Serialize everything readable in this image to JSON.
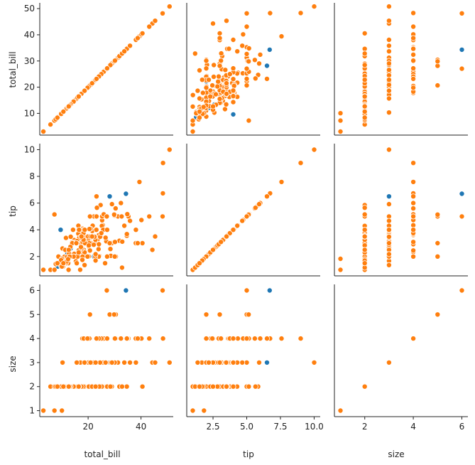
{
  "figure": {
    "type": "pairplot",
    "variables": [
      "total_bill",
      "tip",
      "size"
    ]
  },
  "axes": {
    "total_bill": {
      "label": "total_bill",
      "range": [
        1.7,
        52.2
      ],
      "ticks_y": [
        10,
        20,
        30,
        40,
        50
      ],
      "ticks_x": [
        20,
        40
      ],
      "tick_labels_x": [
        "20",
        "40"
      ]
    },
    "tip": {
      "label": "tip",
      "range": [
        0.55,
        10.45
      ],
      "ticks_y": [
        2,
        4,
        6,
        8,
        10
      ],
      "ticks_x": [
        2.5,
        5.0,
        7.5,
        10.0
      ],
      "tick_labels_x": [
        "2.5",
        "5.0",
        "7.5",
        "10.0"
      ]
    },
    "size": {
      "label": "size",
      "range": [
        0.75,
        6.25
      ],
      "ticks_y": [
        1,
        2,
        3,
        4,
        5,
        6
      ],
      "ticks_x": [
        2,
        4,
        6
      ],
      "tick_labels_x": [
        "2",
        "4",
        "6"
      ]
    }
  },
  "chart_data": {
    "type": "scatter",
    "series": [
      {
        "color": "#1f77b4",
        "points": [
          [
            3.07,
            1.0,
            1
          ],
          [
            7.25,
            1.0,
            1
          ],
          [
            8.51,
            1.25,
            2
          ],
          [
            9.6,
            4.0,
            2
          ],
          [
            10.07,
            1.83,
            1
          ],
          [
            10.29,
            2.6,
            2
          ],
          [
            11.17,
            1.5,
            2
          ],
          [
            12.16,
            2.2,
            2
          ],
          [
            13.0,
            2.0,
            2
          ],
          [
            13.28,
            2.72,
            2
          ],
          [
            14.0,
            3.0,
            2
          ],
          [
            14.52,
            2.0,
            2
          ],
          [
            15.01,
            2.09,
            2
          ],
          [
            15.69,
            3.0,
            3
          ],
          [
            16.47,
            3.23,
            3
          ],
          [
            17.31,
            3.5,
            2
          ],
          [
            18.15,
            3.5,
            3
          ],
          [
            18.78,
            3.0,
            2
          ],
          [
            19.44,
            3.0,
            2
          ],
          [
            20.29,
            2.75,
            2
          ],
          [
            20.92,
            4.08,
            2
          ],
          [
            22.23,
            2.0,
            2
          ],
          [
            22.76,
            3.0,
            2
          ],
          [
            24.59,
            3.61,
            4
          ],
          [
            26.59,
            3.41,
            3
          ],
          [
            27.18,
            2.0,
            2
          ],
          [
            28.17,
            6.5,
            3
          ],
          [
            29.03,
            5.92,
            3
          ],
          [
            32.68,
            5.0,
            2
          ],
          [
            34.3,
            6.7,
            6
          ],
          [
            40.55,
            3.0,
            2
          ],
          [
            43.11,
            5.0,
            4
          ],
          [
            27.05,
            5.0,
            6
          ],
          [
            48.17,
            5.0,
            6
          ],
          [
            28.15,
            3.0,
            5
          ],
          [
            16.32,
            4.3,
            2
          ],
          [
            21.01,
            3.5,
            3
          ],
          [
            12.74,
            2.01,
            2
          ],
          [
            25.0,
            3.75,
            4
          ],
          [
            13.39,
            2.61,
            2
          ]
        ]
      },
      {
        "color": "#ff7f0e",
        "points": [
          [
            16.99,
            1.01,
            2
          ],
          [
            10.34,
            1.66,
            3
          ],
          [
            21.01,
            3.5,
            3
          ],
          [
            23.68,
            3.31,
            2
          ],
          [
            24.59,
            3.61,
            4
          ],
          [
            25.29,
            4.71,
            4
          ],
          [
            8.77,
            2.0,
            2
          ],
          [
            26.88,
            3.12,
            4
          ],
          [
            15.04,
            1.96,
            2
          ],
          [
            14.78,
            3.23,
            2
          ],
          [
            35.26,
            5.0,
            4
          ],
          [
            15.42,
            1.57,
            2
          ],
          [
            18.43,
            3.0,
            4
          ],
          [
            14.83,
            3.02,
            2
          ],
          [
            21.58,
            3.92,
            2
          ],
          [
            10.33,
            1.67,
            3
          ],
          [
            16.29,
            3.71,
            3
          ],
          [
            20.65,
            3.35,
            3
          ],
          [
            17.92,
            4.08,
            2
          ],
          [
            20.29,
            2.75,
            2
          ],
          [
            15.77,
            2.23,
            2
          ],
          [
            39.42,
            7.58,
            4
          ],
          [
            19.82,
            3.18,
            2
          ],
          [
            17.81,
            2.34,
            4
          ],
          [
            13.37,
            2.0,
            2
          ],
          [
            12.69,
            2.0,
            2
          ],
          [
            21.7,
            4.3,
            2
          ],
          [
            19.65,
            3.0,
            2
          ],
          [
            9.55,
            1.45,
            2
          ],
          [
            18.35,
            2.5,
            4
          ],
          [
            15.06,
            3.0,
            2
          ],
          [
            20.69,
            2.45,
            4
          ],
          [
            17.78,
            3.27,
            2
          ],
          [
            24.06,
            3.6,
            3
          ],
          [
            16.31,
            2.0,
            3
          ],
          [
            16.93,
            3.07,
            3
          ],
          [
            18.69,
            2.31,
            3
          ],
          [
            31.27,
            5.0,
            3
          ],
          [
            16.04,
            2.24,
            3
          ],
          [
            17.46,
            2.54,
            2
          ],
          [
            13.94,
            3.06,
            2
          ],
          [
            9.68,
            1.32,
            2
          ],
          [
            30.4,
            5.6,
            4
          ],
          [
            18.29,
            3.0,
            2
          ],
          [
            22.23,
            5.0,
            2
          ],
          [
            32.4,
            6.0,
            4
          ],
          [
            28.55,
            2.05,
            3
          ],
          [
            18.04,
            3.0,
            2
          ],
          [
            12.54,
            2.5,
            2
          ],
          [
            10.29,
            2.6,
            2
          ],
          [
            34.81,
            5.2,
            4
          ],
          [
            9.94,
            1.56,
            2
          ],
          [
            25.56,
            4.34,
            4
          ],
          [
            19.49,
            3.51,
            2
          ],
          [
            38.01,
            3.0,
            4
          ],
          [
            26.41,
            1.5,
            2
          ],
          [
            11.24,
            1.76,
            2
          ],
          [
            48.27,
            6.73,
            4
          ],
          [
            20.29,
            3.21,
            2
          ],
          [
            13.81,
            2.0,
            2
          ],
          [
            11.02,
            1.98,
            2
          ],
          [
            18.29,
            3.76,
            4
          ],
          [
            17.59,
            2.64,
            3
          ],
          [
            20.08,
            3.15,
            3
          ],
          [
            16.45,
            2.47,
            2
          ],
          [
            3.07,
            1.0,
            1
          ],
          [
            20.23,
            2.01,
            2
          ],
          [
            15.01,
            2.09,
            2
          ],
          [
            12.02,
            1.97,
            2
          ],
          [
            17.07,
            3.0,
            3
          ],
          [
            26.86,
            3.14,
            2
          ],
          [
            25.28,
            5.0,
            2
          ],
          [
            14.73,
            2.2,
            2
          ],
          [
            10.51,
            1.25,
            2
          ],
          [
            17.92,
            3.08,
            2
          ],
          [
            27.2,
            4.0,
            4
          ],
          [
            22.76,
            3.0,
            2
          ],
          [
            17.29,
            2.71,
            2
          ],
          [
            19.44,
            3.0,
            2
          ],
          [
            16.66,
            3.4,
            2
          ],
          [
            10.07,
            1.83,
            1
          ],
          [
            32.68,
            5.0,
            2
          ],
          [
            15.98,
            2.03,
            2
          ],
          [
            34.83,
            5.17,
            4
          ],
          [
            13.03,
            2.0,
            2
          ],
          [
            18.28,
            4.0,
            2
          ],
          [
            24.71,
            5.85,
            2
          ],
          [
            21.16,
            3.0,
            2
          ],
          [
            28.97,
            3.0,
            2
          ],
          [
            22.49,
            3.5,
            2
          ],
          [
            5.75,
            1.0,
            2
          ],
          [
            16.32,
            4.3,
            2
          ],
          [
            22.75,
            3.25,
            2
          ],
          [
            40.17,
            4.73,
            4
          ],
          [
            27.28,
            4.0,
            2
          ],
          [
            12.03,
            1.5,
            2
          ],
          [
            21.01,
            3.0,
            2
          ],
          [
            12.46,
            1.5,
            2
          ],
          [
            11.35,
            2.5,
            2
          ],
          [
            15.38,
            3.0,
            2
          ],
          [
            44.3,
            2.5,
            3
          ],
          [
            22.42,
            3.48,
            2
          ],
          [
            20.92,
            4.08,
            2
          ],
          [
            15.36,
            1.64,
            2
          ],
          [
            20.49,
            4.06,
            2
          ],
          [
            25.21,
            4.29,
            2
          ],
          [
            18.24,
            3.76,
            2
          ],
          [
            14.31,
            4.0,
            2
          ],
          [
            14.0,
            3.0,
            2
          ],
          [
            7.25,
            1.0,
            1
          ],
          [
            38.07,
            4.0,
            3
          ],
          [
            23.95,
            2.55,
            2
          ],
          [
            25.71,
            4.0,
            3
          ],
          [
            17.31,
            3.5,
            2
          ],
          [
            29.93,
            5.07,
            4
          ],
          [
            50.81,
            10.0,
            3
          ],
          [
            15.81,
            3.16,
            2
          ],
          [
            7.25,
            5.15,
            2
          ],
          [
            31.85,
            3.18,
            2
          ],
          [
            16.82,
            4.0,
            2
          ],
          [
            32.9,
            3.11,
            2
          ],
          [
            17.89,
            2.0,
            2
          ],
          [
            14.48,
            2.0,
            2
          ],
          [
            34.63,
            3.55,
            2
          ],
          [
            34.65,
            3.68,
            4
          ],
          [
            23.33,
            5.65,
            2
          ],
          [
            45.35,
            3.5,
            3
          ],
          [
            23.17,
            6.5,
            4
          ],
          [
            40.55,
            3.0,
            2
          ],
          [
            20.69,
            5.0,
            5
          ],
          [
            30.46,
            2.0,
            5
          ],
          [
            23.1,
            4.0,
            3
          ],
          [
            15.69,
            1.5,
            2
          ],
          [
            26.59,
            3.41,
            3
          ],
          [
            38.73,
            3.0,
            4
          ],
          [
            24.27,
            2.03,
            2
          ],
          [
            12.76,
            2.23,
            2
          ],
          [
            30.06,
            2.0,
            3
          ],
          [
            25.89,
            5.16,
            4
          ],
          [
            48.33,
            9.0,
            4
          ],
          [
            28.15,
            3.0,
            5
          ],
          [
            11.59,
            1.5,
            2
          ],
          [
            7.74,
            1.44,
            2
          ],
          [
            20.45,
            3.0,
            4
          ],
          [
            13.28,
            2.72,
            2
          ],
          [
            22.12,
            2.88,
            3
          ],
          [
            24.01,
            2.0,
            4
          ],
          [
            15.69,
            3.0,
            3
          ],
          [
            11.61,
            3.39,
            2
          ],
          [
            10.77,
            1.47,
            2
          ],
          [
            15.53,
            3.0,
            2
          ],
          [
            10.07,
            1.25,
            2
          ],
          [
            12.6,
            1.0,
            2
          ],
          [
            32.83,
            1.17,
            2
          ],
          [
            35.83,
            4.67,
            3
          ],
          [
            29.03,
            5.92,
            3
          ],
          [
            27.18,
            2.0,
            2
          ],
          [
            22.67,
            2.0,
            2
          ],
          [
            17.82,
            1.75,
            2
          ],
          [
            18.78,
            3.0,
            2
          ],
          [
            20.0,
            3.5,
            2
          ],
          [
            20.9,
            3.5,
            3
          ],
          [
            24.52,
            3.48,
            3
          ],
          [
            27.05,
            5.0,
            6
          ],
          [
            48.17,
            5.0,
            6
          ],
          [
            29.85,
            5.14,
            5
          ],
          [
            25.0,
            3.75,
            4
          ],
          [
            33.68,
            4.3,
            3
          ],
          [
            28.44,
            2.56,
            2
          ],
          [
            16.0,
            2.0,
            2
          ],
          [
            20.27,
            2.83,
            2
          ],
          [
            22.82,
            2.18,
            3
          ],
          [
            9.78,
            1.73,
            2
          ],
          [
            19.77,
            2.0,
            4
          ],
          [
            11.87,
            1.63,
            2
          ],
          [
            18.26,
            3.25,
            2
          ],
          [
            17.47,
            3.5,
            2
          ],
          [
            13.51,
            2.0,
            2
          ],
          [
            14.52,
            2.0,
            2
          ],
          [
            18.71,
            4.0,
            3
          ],
          [
            16.58,
            4.0,
            2
          ],
          [
            13.42,
            3.48,
            2
          ],
          [
            27.2,
            4.0,
            4
          ],
          [
            21.5,
            3.5,
            2
          ],
          [
            43.11,
            5.0,
            4
          ],
          [
            13.0,
            2.0,
            2
          ],
          [
            12.43,
            1.8,
            2
          ],
          [
            24.08,
            2.92,
            4
          ],
          [
            16.43,
            2.3,
            2
          ],
          [
            8.35,
            1.5,
            2
          ],
          [
            18.64,
            1.36,
            3
          ],
          [
            22.82,
            1.7,
            2
          ],
          [
            10.65,
            1.5,
            2
          ],
          [
            12.66,
            2.5,
            2
          ],
          [
            23.17,
            5.0,
            4
          ],
          [
            30.14,
            3.09,
            4
          ]
        ]
      }
    ]
  }
}
